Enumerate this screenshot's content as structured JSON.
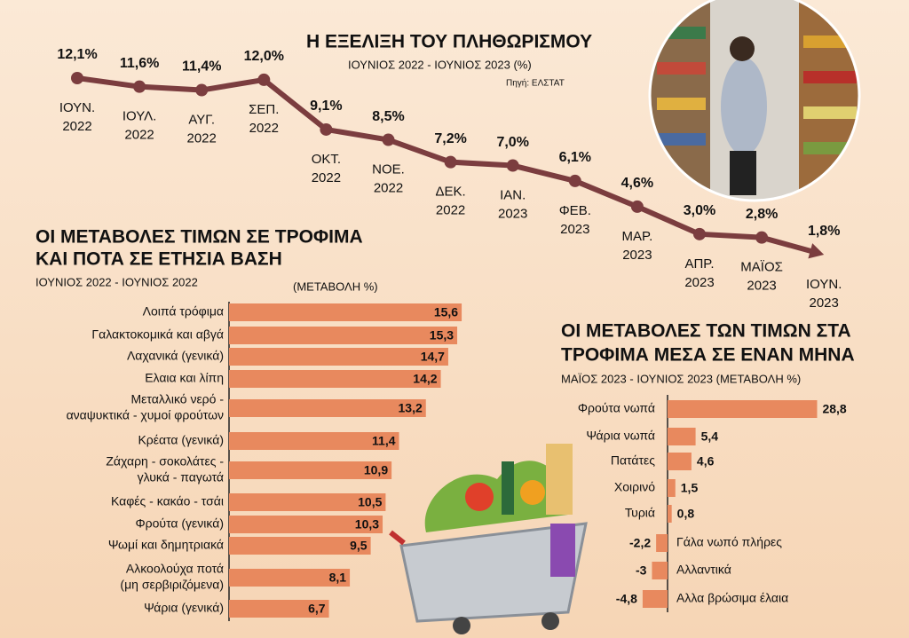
{
  "chart_data": [
    {
      "type": "line",
      "title": "Η ΕΞΕΛΙΞΗ ΤΟΥ ΠΛΗΘΩΡΙΣΜΟΥ",
      "subtitle": "ΙΟΥΝΙΟΣ  2022 - ΙΟΥΝΙΟΣ 2023 (%)",
      "source": "Πηγή: ΕΛΣΤΑΤ",
      "categories": [
        [
          "ΙΟΥΝ.",
          "2022"
        ],
        [
          "ΙΟΥΛ.",
          "2022"
        ],
        [
          "ΑΥΓ.",
          "2022"
        ],
        [
          "ΣΕΠ.",
          "2022"
        ],
        [
          "ΟΚΤ.",
          "2022"
        ],
        [
          "ΝΟΕ.",
          "2022"
        ],
        [
          "ΔΕΚ.",
          "2022"
        ],
        [
          "ΙΑΝ.",
          "2023"
        ],
        [
          "ΦΕΒ.",
          "2023"
        ],
        [
          "ΜΑΡ.",
          "2023"
        ],
        [
          "ΑΠΡ.",
          "2023"
        ],
        [
          "ΜΑΪΟΣ",
          "2023"
        ],
        [
          "ΙΟΥΝ.",
          "2023"
        ]
      ],
      "values": [
        12.1,
        11.6,
        11.4,
        12.0,
        9.1,
        8.5,
        7.2,
        7.0,
        6.1,
        4.6,
        3.0,
        2.8,
        1.8
      ],
      "value_labels": [
        "12,1%",
        "11,6%",
        "11,4%",
        "12,0%",
        "9,1%",
        "8,5%",
        "7,2%",
        "7,0%",
        "6,1%",
        "4,6%",
        "3,0%",
        "2,8%",
        "1,8%"
      ],
      "color": "#7b3d3f"
    },
    {
      "type": "bar",
      "orientation": "horizontal",
      "title": [
        "ΟΙ ΜΕΤΑΒΟΛΕΣ ΤΙΜΩΝ ΣΕ ΤΡΟΦΙΜΑ",
        "ΚΑΙ ΠΟΤΑ ΣΕ ΕΤΗΣΙΑ ΒΑΣΗ"
      ],
      "subtitle": "ΙΟΥΝΙΟΣ 2022 - ΙΟΥΝΙΟΣ 2022",
      "unit_label": "(ΜΕΤΑΒΟΛΗ %)",
      "categories": [
        [
          "Λοιπά τρόφιμα"
        ],
        [
          "Γαλακτοκομικά και αβγά"
        ],
        [
          "Λαχανικά (γενικά)"
        ],
        [
          "Ελαια και λίπη"
        ],
        [
          "Μεταλλικό νερό -",
          "αναψυκτικά - χυμοί φρούτων"
        ],
        [
          "Κρέατα (γενικά)"
        ],
        [
          "Ζάχαρη - σοκολάτες -",
          "γλυκά - παγωτά"
        ],
        [
          "Καφές - κακάο - τσάι"
        ],
        [
          "Φρούτα (γενικά)"
        ],
        [
          "Ψωμί και δημητριακά"
        ],
        [
          "Αλκοολούχα ποτά",
          "(μη σερβιριζόμενα)"
        ],
        [
          "Ψάρια (γενικά)"
        ]
      ],
      "values": [
        15.6,
        15.3,
        14.7,
        14.2,
        13.2,
        11.4,
        10.9,
        10.5,
        10.3,
        9.5,
        8.1,
        6.7
      ],
      "value_labels": [
        "15,6",
        "15,3",
        "14,7",
        "14,2",
        "13,2",
        "11,4",
        "10,9",
        "10,5",
        "10,3",
        "9,5",
        "8,1",
        "6,7"
      ],
      "color": "#e8895e"
    },
    {
      "type": "bar",
      "orientation": "horizontal",
      "title": [
        "ΟΙ ΜΕΤΑΒΟΛΕΣ ΤΩΝ ΤΙΜΩΝ ΣΤΑ",
        "ΤΡΟΦΙΜΑ ΜΕΣΑ ΣΕ ΕΝΑΝ ΜΗΝΑ"
      ],
      "subtitle": "ΜΑΪΟΣ 2023 -   ΙΟΥΝΙΟΣ 2023 (ΜΕΤΑΒΟΛΗ %)",
      "categories": [
        [
          "Φρούτα νωπά"
        ],
        [
          "Ψάρια νωπά"
        ],
        [
          "Πατάτες"
        ],
        [
          "Χοιρινό"
        ],
        [
          "Τυριά"
        ],
        [
          "Γάλα νωπό πλήρες"
        ],
        [
          "Αλλαντικά"
        ],
        [
          "Αλλα βρώσιμα έλαια"
        ]
      ],
      "values": [
        28.8,
        5.4,
        4.6,
        1.5,
        0.8,
        -2.2,
        -3,
        -4.8
      ],
      "value_labels": [
        "28,8",
        "5,4",
        "4,6",
        "1,5",
        "0,8",
        "-2,2",
        "-3",
        "-4,8"
      ],
      "color": "#e8895e"
    }
  ]
}
